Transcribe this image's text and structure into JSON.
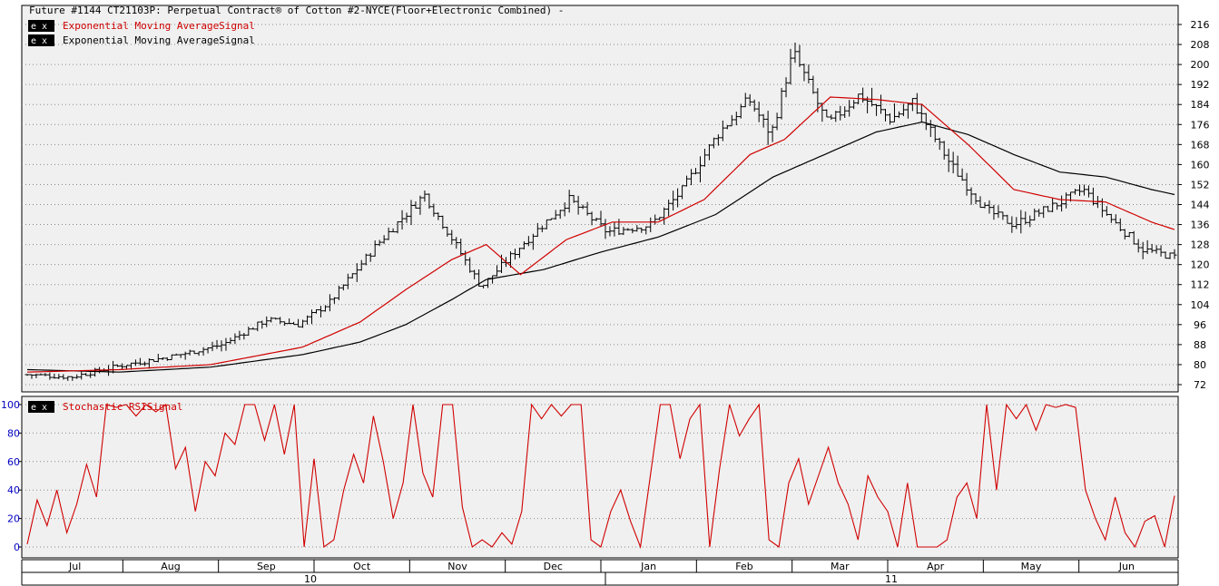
{
  "price_panel": {
    "title": "Future #1144 CT21103P: Perpetual Contract® of Cotton #2-NYCE(Floor+Electronic Combined) -",
    "legend": [
      {
        "badge": "e x",
        "label": "Exponential Moving AverageSignal",
        "color": "#d00000"
      },
      {
        "badge": "e x",
        "label": "Exponential Moving AverageSignal",
        "color": "#000000"
      }
    ],
    "y_ticks": [
      "216",
      "208",
      "200",
      "192",
      "184",
      "176",
      "168",
      "160",
      "152",
      "144",
      "136",
      "128",
      "120",
      "112",
      "104",
      "96",
      "88",
      "80",
      "72"
    ]
  },
  "osc_panel": {
    "legend": {
      "badge": "e x",
      "label": "Stochastic RSISignal",
      "color": "#d00000"
    },
    "y_ticks": [
      "100",
      "80",
      "60",
      "40",
      "20",
      "0"
    ]
  },
  "x_axis": {
    "months": [
      "Jul",
      "Aug",
      "Sep",
      "Oct",
      "Nov",
      "Dec",
      "Jan",
      "Feb",
      "Mar",
      "Apr",
      "May",
      "Jun"
    ],
    "years": [
      "10",
      "11"
    ]
  },
  "colors": {
    "panel_bg": "#f0f0f0",
    "grid": "#8a8a8a",
    "ema_fast": "#d00000",
    "ema_slow": "#000000",
    "stoch_rsi": "#d00000",
    "osc_tick_text": "#0000c0"
  },
  "chart_data": [
    {
      "type": "ohlc",
      "title": "Future #1144 CT21103P: Perpetual Contract® of Cotton #2-NYCE(Floor+Electronic Combined) -",
      "ylim": [
        72,
        216
      ],
      "x_range": [
        "2010-07",
        "2011-06"
      ],
      "close_keypoints": [
        {
          "x": "2010-07-01",
          "y": 76
        },
        {
          "x": "2010-07-15",
          "y": 75
        },
        {
          "x": "2010-08-01",
          "y": 80
        },
        {
          "x": "2010-08-15",
          "y": 83
        },
        {
          "x": "2010-09-01",
          "y": 88
        },
        {
          "x": "2010-09-15",
          "y": 98
        },
        {
          "x": "2010-09-25",
          "y": 96
        },
        {
          "x": "2010-10-05",
          "y": 105
        },
        {
          "x": "2010-10-20",
          "y": 128
        },
        {
          "x": "2010-11-04",
          "y": 148
        },
        {
          "x": "2010-11-12",
          "y": 132
        },
        {
          "x": "2010-11-22",
          "y": 111
        },
        {
          "x": "2010-12-05",
          "y": 128
        },
        {
          "x": "2010-12-20",
          "y": 146
        },
        {
          "x": "2011-01-01",
          "y": 133
        },
        {
          "x": "2011-01-15",
          "y": 136
        },
        {
          "x": "2011-01-25",
          "y": 150
        },
        {
          "x": "2011-02-05",
          "y": 172
        },
        {
          "x": "2011-02-15",
          "y": 186
        },
        {
          "x": "2011-02-22",
          "y": 172
        },
        {
          "x": "2011-03-01",
          "y": 205
        },
        {
          "x": "2011-03-12",
          "y": 176
        },
        {
          "x": "2011-03-22",
          "y": 188
        },
        {
          "x": "2011-04-01",
          "y": 178
        },
        {
          "x": "2011-04-08",
          "y": 185
        },
        {
          "x": "2011-04-20",
          "y": 160
        },
        {
          "x": "2011-05-01",
          "y": 142
        },
        {
          "x": "2011-05-10",
          "y": 136
        },
        {
          "x": "2011-05-25",
          "y": 145
        },
        {
          "x": "2011-06-01",
          "y": 150
        },
        {
          "x": "2011-06-10",
          "y": 138
        },
        {
          "x": "2011-06-20",
          "y": 126
        },
        {
          "x": "2011-06-30",
          "y": 123
        }
      ],
      "series": [
        {
          "name": "Exponential Moving AverageSignal",
          "color": "#d00000",
          "points": [
            [
              0,
              77
            ],
            [
              0.08,
              78
            ],
            [
              0.16,
              80
            ],
            [
              0.24,
              87
            ],
            [
              0.29,
              97
            ],
            [
              0.33,
              110
            ],
            [
              0.37,
              122
            ],
            [
              0.4,
              128
            ],
            [
              0.43,
              116
            ],
            [
              0.47,
              130
            ],
            [
              0.51,
              137
            ],
            [
              0.55,
              137
            ],
            [
              0.59,
              146
            ],
            [
              0.63,
              164
            ],
            [
              0.66,
              170
            ],
            [
              0.7,
              187
            ],
            [
              0.74,
              186
            ],
            [
              0.78,
              184
            ],
            [
              0.82,
              168
            ],
            [
              0.86,
              150
            ],
            [
              0.9,
              146
            ],
            [
              0.94,
              145
            ],
            [
              0.98,
              137
            ],
            [
              1,
              134
            ]
          ]
        },
        {
          "name": "Exponential Moving AverageSignal",
          "color": "#000000",
          "points": [
            [
              0,
              78
            ],
            [
              0.08,
              77
            ],
            [
              0.16,
              79
            ],
            [
              0.24,
              84
            ],
            [
              0.29,
              89
            ],
            [
              0.33,
              96
            ],
            [
              0.37,
              106
            ],
            [
              0.4,
              114
            ],
            [
              0.45,
              118
            ],
            [
              0.5,
              125
            ],
            [
              0.55,
              131
            ],
            [
              0.6,
              140
            ],
            [
              0.65,
              155
            ],
            [
              0.7,
              165
            ],
            [
              0.74,
              173
            ],
            [
              0.78,
              177
            ],
            [
              0.82,
              172
            ],
            [
              0.86,
              164
            ],
            [
              0.9,
              157
            ],
            [
              0.94,
              155
            ],
            [
              0.98,
              150
            ],
            [
              1,
              148
            ]
          ]
        }
      ]
    },
    {
      "type": "line",
      "name": "Stochastic RSISignal",
      "ylim": [
        0,
        100
      ],
      "x_range": [
        "2010-07",
        "2011-06"
      ],
      "values": [
        2,
        33,
        15,
        40,
        10,
        30,
        58,
        35,
        100,
        98,
        100,
        92,
        100,
        95,
        100,
        55,
        70,
        25,
        60,
        50,
        80,
        72,
        100,
        100,
        75,
        100,
        65,
        100,
        0,
        62,
        0,
        5,
        40,
        65,
        45,
        92,
        60,
        20,
        45,
        100,
        52,
        35,
        100,
        100,
        28,
        0,
        5,
        0,
        10,
        2,
        25,
        100,
        90,
        100,
        92,
        100,
        100,
        5,
        0,
        25,
        40,
        18,
        0,
        50,
        100,
        100,
        62,
        90,
        100,
        0,
        55,
        100,
        78,
        90,
        100,
        5,
        0,
        45,
        62,
        30,
        50,
        70,
        45,
        30,
        5,
        50,
        35,
        25,
        0,
        45,
        0,
        0,
        0,
        5,
        35,
        45,
        20,
        100,
        40,
        100,
        90,
        100,
        82,
        100,
        98,
        100,
        98,
        40,
        20,
        5,
        35,
        10,
        0,
        18,
        22,
        0,
        36
      ]
    }
  ]
}
